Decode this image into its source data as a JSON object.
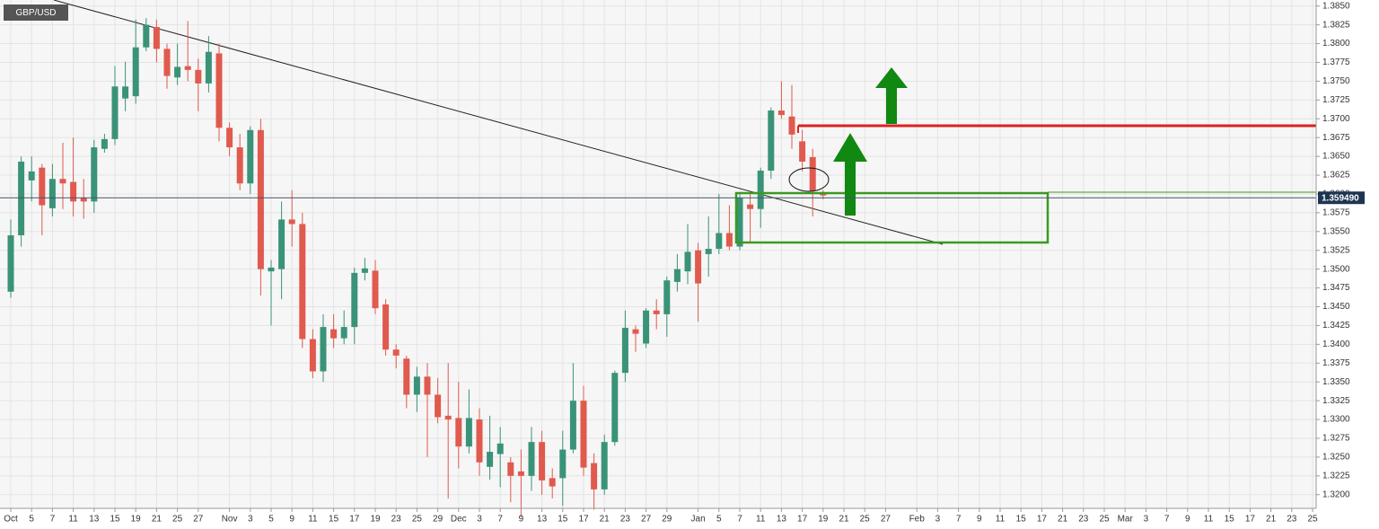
{
  "chart_data": {
    "type": "candlestick",
    "title": "GBP/USD",
    "up_color": "#3a9378",
    "down_color": "#e05a4e",
    "grid": true,
    "categories": [
      "Oct",
      null,
      "5",
      null,
      "7",
      null,
      "11",
      null,
      "13",
      null,
      "15",
      null,
      "19",
      null,
      "21",
      null,
      "25",
      null,
      "27",
      null,
      null,
      "Nov",
      null,
      "3",
      null,
      "5",
      null,
      "9",
      null,
      "11",
      null,
      "15",
      null,
      "17",
      null,
      "19",
      null,
      "23",
      null,
      "25",
      null,
      "29",
      null,
      "Dec",
      null,
      "3",
      null,
      "7",
      null,
      "9",
      null,
      "13",
      null,
      "15",
      null,
      "17",
      null,
      "21",
      null,
      "23",
      null,
      "27",
      null,
      "29",
      null,
      null,
      "Jan",
      null,
      "5",
      null,
      "7",
      null,
      "11",
      null,
      "13",
      null,
      "17",
      null,
      "19",
      null,
      "21",
      null,
      "25",
      null,
      "27",
      null,
      null,
      "Feb",
      null,
      "3",
      null,
      "7",
      null,
      "9",
      null,
      "11",
      null,
      "15",
      null,
      "17",
      null,
      "21",
      null,
      "23",
      null,
      "25",
      null,
      "Mar",
      null,
      "3",
      null,
      "7",
      null,
      "9",
      null,
      "11",
      null,
      "15",
      null,
      "17",
      null,
      "21",
      null,
      "23",
      null,
      "25"
    ],
    "open": [
      1.347,
      1.3545,
      1.3618,
      1.3635,
      1.3581,
      1.362,
      1.3616,
      1.3595,
      1.359,
      1.366,
      1.3673,
      1.3727,
      1.373,
      1.3795,
      1.3822,
      1.3793,
      1.3755,
      1.377,
      1.3765,
      1.3747,
      1.3787,
      1.3688,
      1.3662,
      1.3614,
      1.3685,
      1.3497,
      1.35,
      1.3566,
      1.356,
      1.3407,
      1.3364,
      1.342,
      1.3408,
      1.3423,
      1.3495,
      1.3498,
      1.3453,
      1.3393,
      1.3381,
      1.3333,
      1.3357,
      1.3333,
      1.3305,
      1.3302,
      1.3264,
      1.33,
      1.3237,
      1.3254,
      1.3243,
      1.3231,
      1.3225,
      1.327,
      1.3222,
      1.3222,
      1.326,
      1.3325,
      1.3242,
      1.3207,
      1.327,
      1.3362,
      1.342,
      1.3401,
      1.3445,
      1.344,
      1.3483,
      1.3497,
      1.3525,
      1.352,
      1.3527,
      1.3548,
      1.353,
      1.3586,
      1.358,
      1.3631,
      1.3711,
      1.3703,
      1.367,
      1.3649,
      1.3602,
      null,
      null,
      null,
      null,
      null,
      null,
      null,
      null,
      null,
      null,
      null,
      null,
      null,
      null,
      null,
      null,
      null,
      null,
      null,
      null,
      null,
      null,
      null,
      null,
      null,
      null,
      null,
      null,
      null,
      null,
      null,
      null,
      null,
      null,
      null,
      null,
      null,
      null,
      null,
      null,
      null,
      null,
      null,
      null,
      null,
      null,
      null
    ],
    "high": [
      1.3566,
      1.365,
      1.365,
      1.364,
      1.364,
      1.3668,
      1.3675,
      1.362,
      1.3672,
      1.368,
      1.377,
      1.3776,
      1.3832,
      1.3834,
      1.3832,
      1.38,
      1.38,
      1.383,
      1.378,
      1.381,
      1.38,
      1.3695,
      1.368,
      1.369,
      1.37,
      1.3512,
      1.359,
      1.3605,
      1.3575,
      1.342,
      1.344,
      1.344,
      1.3445,
      1.3502,
      1.3515,
      1.3512,
      1.346,
      1.34,
      1.3385,
      1.337,
      1.3375,
      1.3355,
      1.3375,
      1.335,
      1.334,
      1.3315,
      1.3305,
      1.329,
      1.325,
      1.326,
      1.329,
      1.3285,
      1.3235,
      1.3285,
      1.3375,
      1.3345,
      1.3255,
      1.328,
      1.3365,
      1.3445,
      1.3425,
      1.3448,
      1.346,
      1.349,
      1.352,
      1.356,
      1.3535,
      1.357,
      1.36,
      1.3585,
      1.36,
      1.36,
      1.3635,
      1.3715,
      1.375,
      1.3745,
      1.3685,
      1.366,
      1.3605,
      null,
      null,
      null,
      null,
      null,
      null,
      null,
      null,
      null,
      null,
      null,
      null,
      null,
      null,
      null,
      null,
      null,
      null,
      null,
      null,
      null,
      null,
      null,
      null,
      null,
      null,
      null,
      null,
      null,
      null,
      null,
      null,
      null,
      null,
      null,
      null,
      null,
      null,
      null,
      null,
      null,
      null,
      null,
      null,
      null,
      null,
      null
    ],
    "low": [
      1.3462,
      1.353,
      1.359,
      1.3545,
      1.357,
      1.358,
      1.357,
      1.3567,
      1.3575,
      1.3655,
      1.3665,
      1.371,
      1.372,
      1.379,
      1.3775,
      1.374,
      1.3745,
      1.375,
      1.371,
      1.3735,
      1.367,
      1.365,
      1.3605,
      1.36,
      1.3465,
      1.3425,
      1.346,
      1.353,
      1.3395,
      1.3355,
      1.335,
      1.3395,
      1.34,
      1.34,
      1.3485,
      1.344,
      1.3385,
      1.3368,
      1.3315,
      1.331,
      1.325,
      1.3295,
      1.3195,
      1.3235,
      1.3255,
      1.3225,
      1.322,
      1.321,
      1.319,
      1.317,
      1.3205,
      1.32,
      1.3195,
      1.3185,
      1.3255,
      1.3225,
      1.318,
      1.32,
      1.3265,
      1.335,
      1.339,
      1.3395,
      1.342,
      1.341,
      1.347,
      1.348,
      1.343,
      1.349,
      1.352,
      1.3525,
      1.3525,
      1.3535,
      1.3555,
      1.362,
      1.37,
      1.366,
      1.363,
      1.357,
      1.3593,
      null,
      null,
      null,
      null,
      null,
      null,
      null,
      null,
      null,
      null,
      null,
      null,
      null,
      null,
      null,
      null,
      null,
      null,
      null,
      null,
      null,
      null,
      null,
      null,
      null,
      null,
      null,
      null,
      null,
      null,
      null,
      null,
      null,
      null,
      null,
      null,
      null,
      null,
      null,
      null,
      null,
      null,
      null,
      null,
      null,
      null,
      null
    ],
    "close": [
      1.3545,
      1.3643,
      1.363,
      1.3585,
      1.362,
      1.3614,
      1.359,
      1.359,
      1.3662,
      1.3673,
      1.3743,
      1.3743,
      1.3795,
      1.3825,
      1.3793,
      1.3757,
      1.3769,
      1.3765,
      1.3747,
      1.3789,
      1.3688,
      1.3662,
      1.3614,
      1.3685,
      1.35,
      1.3502,
      1.3566,
      1.356,
      1.3407,
      1.3364,
      1.3423,
      1.3408,
      1.3423,
      1.3495,
      1.3501,
      1.3448,
      1.3393,
      1.3385,
      1.3333,
      1.3357,
      1.3333,
      1.3303,
      1.33,
      1.3264,
      1.3302,
      1.3243,
      1.3257,
      1.3268,
      1.3225,
      1.3225,
      1.327,
      1.3219,
      1.3211,
      1.326,
      1.3325,
      1.3236,
      1.3207,
      1.327,
      1.3362,
      1.3422,
      1.3414,
      1.3445,
      1.344,
      1.3485,
      1.35,
      1.3523,
      1.3481,
      1.3527,
      1.3548,
      1.353,
      1.3595,
      1.358,
      1.3631,
      1.3711,
      1.3705,
      1.3679,
      1.3643,
      1.3604,
      1.3598,
      null,
      null,
      null,
      null,
      null,
      null,
      null,
      null,
      null,
      null,
      null,
      null,
      null,
      null,
      null,
      null,
      null,
      null,
      null,
      null,
      null,
      null,
      null,
      null,
      null,
      null,
      null,
      null,
      null,
      null,
      null,
      null,
      null,
      null,
      null,
      null,
      null,
      null,
      null,
      null,
      null,
      null,
      null,
      null,
      null,
      null,
      null
    ],
    "last_price": {
      "value": 1.35949,
      "label": "1.359490"
    },
    "ylim": [
      1.3183,
      1.3858
    ],
    "yticks": [
      {
        "value": 1.32,
        "label": "1.3200"
      },
      {
        "value": 1.3225,
        "label": "1.3225"
      },
      {
        "value": 1.325,
        "label": "1.3250"
      },
      {
        "value": 1.3275,
        "label": "1.3275"
      },
      {
        "value": 1.33,
        "label": "1.3300"
      },
      {
        "value": 1.3325,
        "label": "1.3325"
      },
      {
        "value": 1.335,
        "label": "1.3350"
      },
      {
        "value": 1.3375,
        "label": "1.3375"
      },
      {
        "value": 1.34,
        "label": "1.3400"
      },
      {
        "value": 1.3425,
        "label": "1.3425"
      },
      {
        "value": 1.345,
        "label": "1.3450"
      },
      {
        "value": 1.3475,
        "label": "1.3475"
      },
      {
        "value": 1.35,
        "label": "1.3500"
      },
      {
        "value": 1.3525,
        "label": "1.3525"
      },
      {
        "value": 1.355,
        "label": "1.3550"
      },
      {
        "value": 1.3575,
        "label": "1.3575"
      },
      {
        "value": 1.36,
        "label": "1.3600"
      },
      {
        "value": 1.3625,
        "label": "1.3625"
      },
      {
        "value": 1.365,
        "label": "1.3650"
      },
      {
        "value": 1.3675,
        "label": "1.3675"
      },
      {
        "value": 1.37,
        "label": "1.3700"
      },
      {
        "value": 1.3725,
        "label": "1.3725"
      },
      {
        "value": 1.375,
        "label": "1.3750"
      },
      {
        "value": 1.3775,
        "label": "1.3775"
      },
      {
        "value": 1.38,
        "label": "1.3800"
      },
      {
        "value": 1.3825,
        "label": "1.3825"
      },
      {
        "value": 1.385,
        "label": "1.3850"
      }
    ]
  }
}
